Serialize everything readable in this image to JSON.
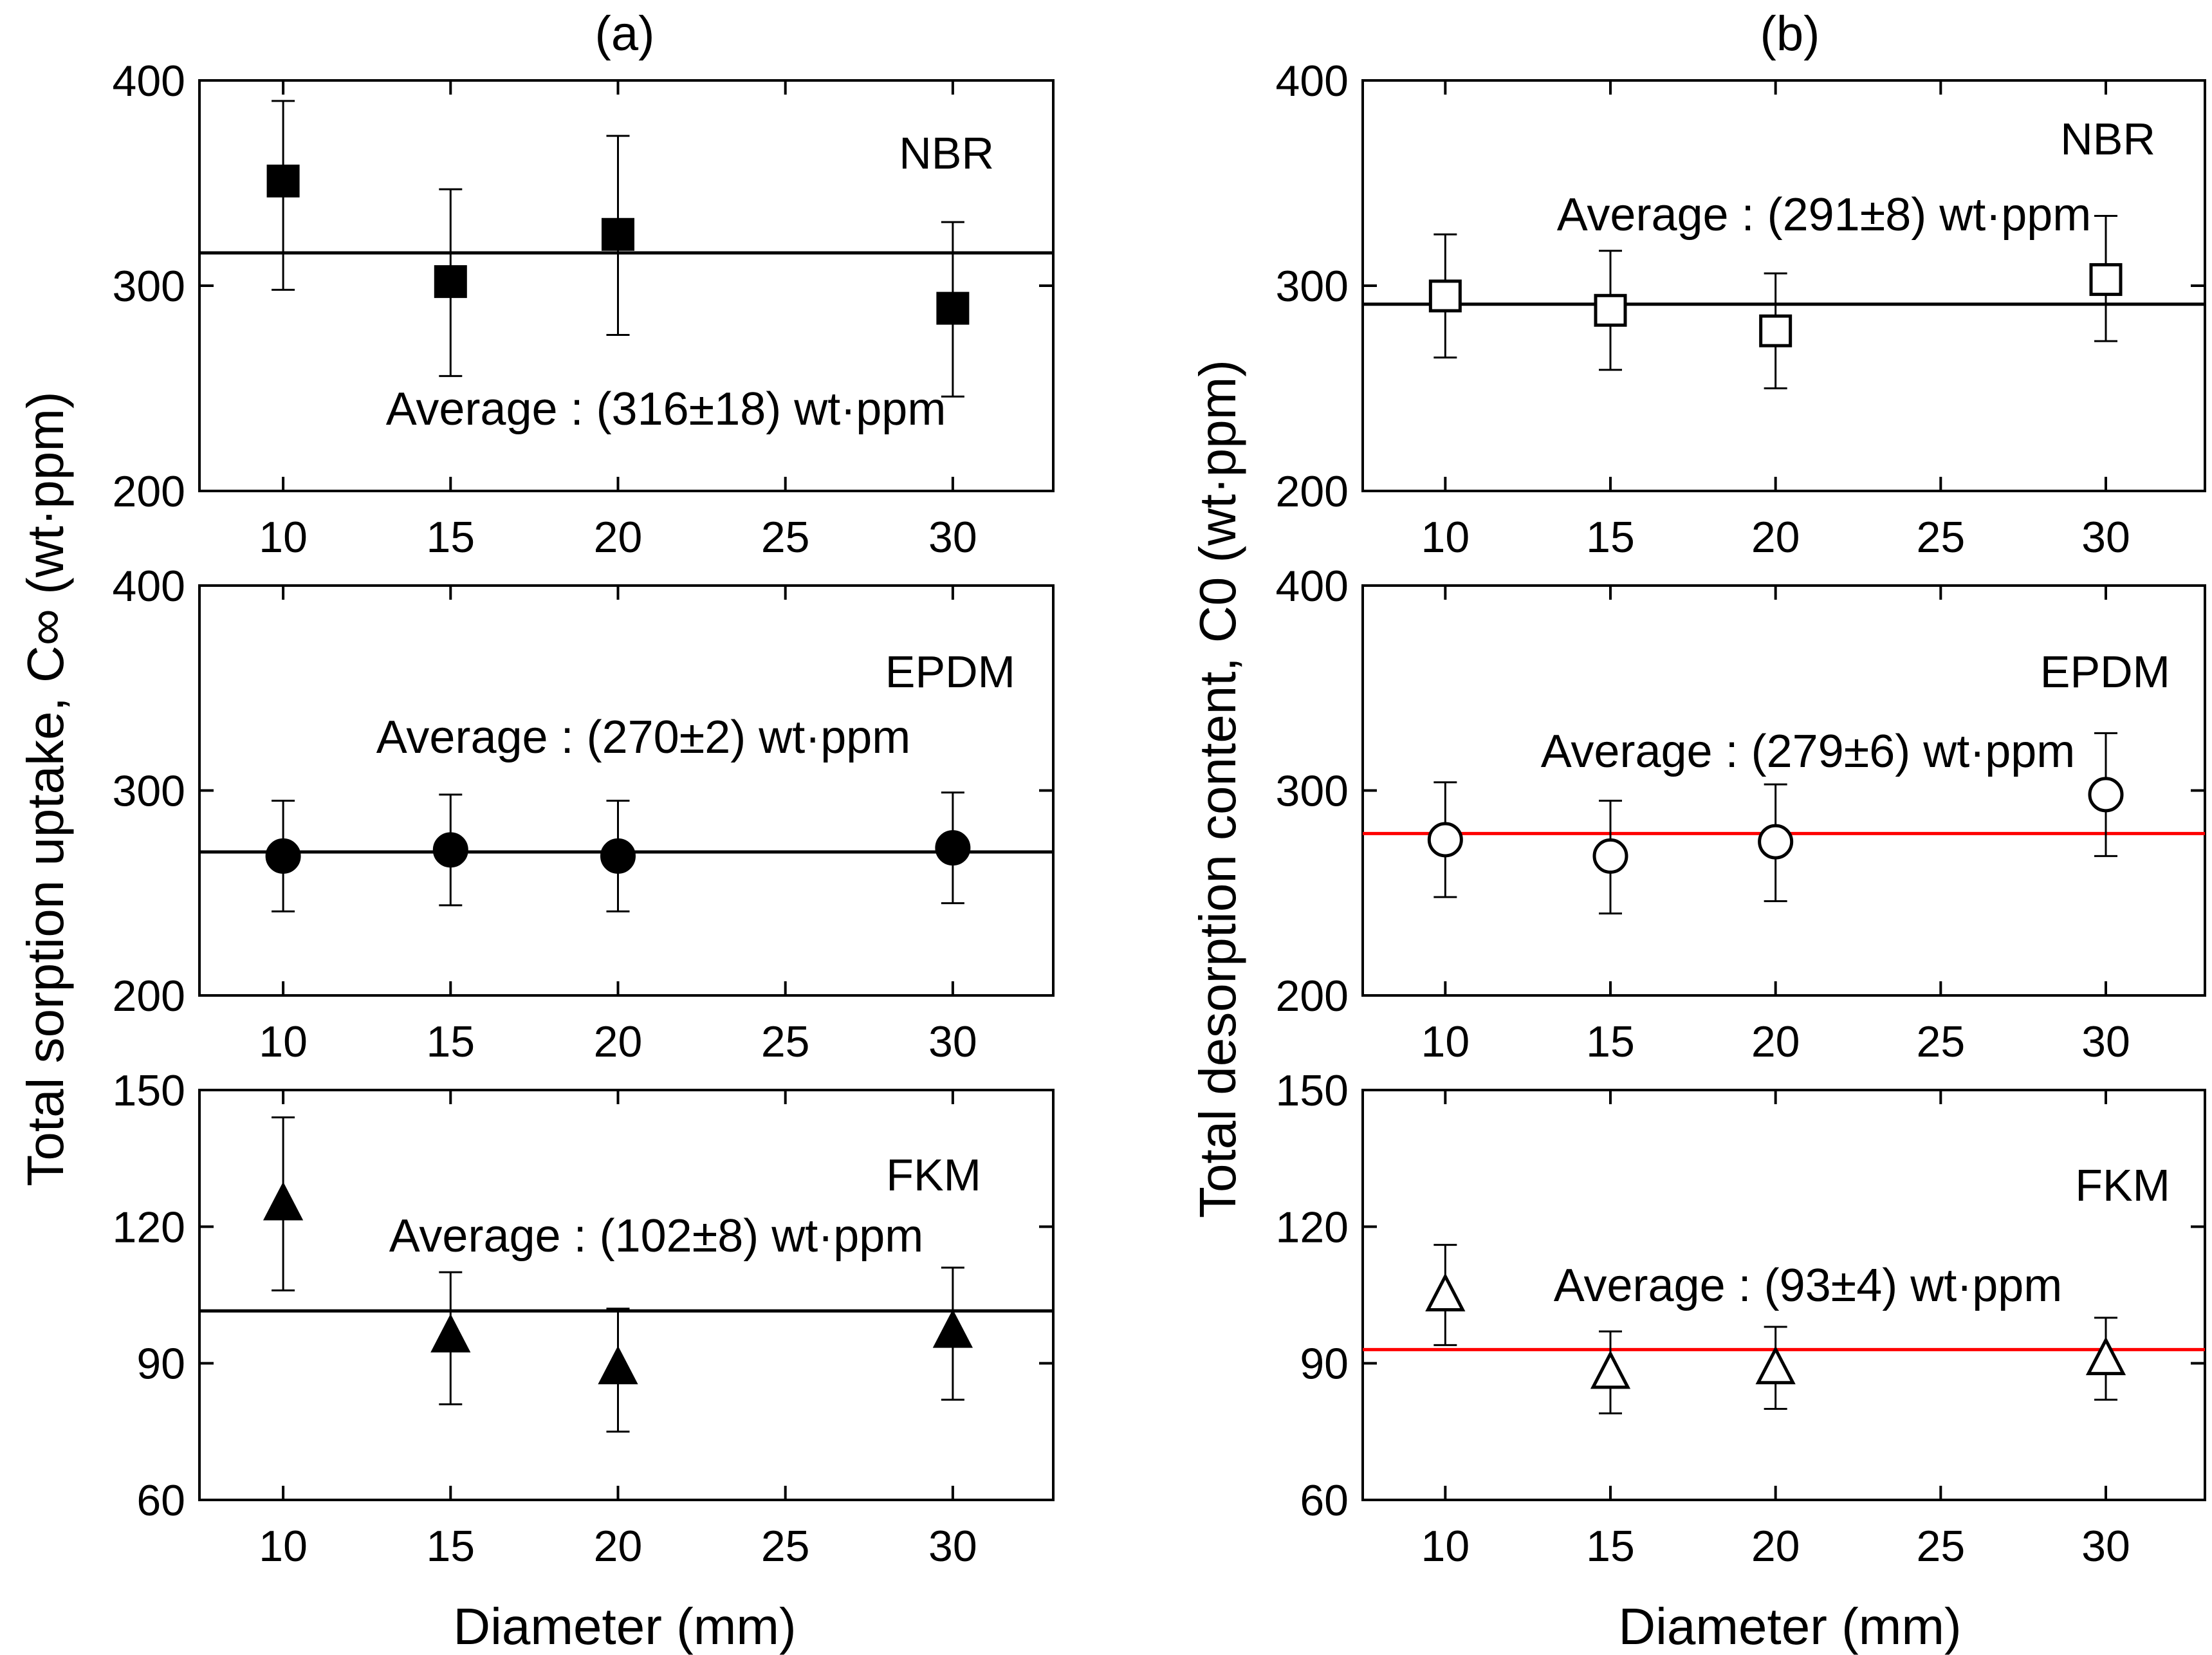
{
  "columns": [
    {
      "label": "(a)",
      "ylabel": "Total sorption uptake, C∞ (wt·ppm)",
      "xlabel": "Diameter (mm)"
    },
    {
      "label": "(b)",
      "ylabel": "Total desorption content, C0 (wt·ppm)",
      "xlabel": "Diameter (mm)"
    }
  ],
  "chart_data": [
    {
      "type": "scatter",
      "column": "(a)",
      "panel": "NBR",
      "marker": "square",
      "filled": true,
      "x": [
        10,
        15,
        20,
        30
      ],
      "y": [
        351,
        302,
        325,
        289
      ],
      "err_low": [
        298,
        256,
        276,
        246
      ],
      "err_high": [
        390,
        347,
        373,
        331
      ],
      "avg_value": 316,
      "avg_label": "Average : (316±18) wt·ppm",
      "line_color": "#000000",
      "ylim": [
        200,
        400
      ],
      "yticks": [
        "200",
        "300",
        "400"
      ],
      "xlim": [
        7.5,
        33
      ],
      "xticks": [
        "10",
        "15",
        "20",
        "25",
        "30"
      ]
    },
    {
      "type": "scatter",
      "column": "(a)",
      "panel": "EPDM",
      "marker": "circle",
      "filled": true,
      "x": [
        10,
        15,
        20,
        30
      ],
      "y": [
        268,
        271,
        268,
        272
      ],
      "err_low": [
        241,
        244,
        241,
        245
      ],
      "err_high": [
        295,
        298,
        295,
        299
      ],
      "avg_value": 270,
      "avg_label": "Average : (270±2) wt·ppm",
      "line_color": "#000000",
      "ylim": [
        200,
        400
      ],
      "yticks": [
        "200",
        "300",
        "400"
      ],
      "xlim": [
        7.5,
        33
      ],
      "xticks": [
        "10",
        "15",
        "20",
        "25",
        "30"
      ]
    },
    {
      "type": "scatter",
      "column": "(a)",
      "panel": "FKM",
      "marker": "triangle",
      "filled": true,
      "x": [
        10,
        15,
        20,
        30
      ],
      "y": [
        125,
        96,
        89,
        97
      ],
      "err_low": [
        106,
        81,
        75,
        82
      ],
      "err_high": [
        144,
        110,
        102,
        111
      ],
      "avg_value": 101.5,
      "avg_label": "Average : (102±8) wt·ppm",
      "line_color": "#000000",
      "ylim": [
        60,
        150
      ],
      "yticks": [
        "60",
        "90",
        "120",
        "150"
      ],
      "xlim": [
        7.5,
        33
      ],
      "xticks": [
        "10",
        "15",
        "20",
        "25",
        "30"
      ]
    },
    {
      "type": "scatter",
      "column": "(b)",
      "panel": "NBR",
      "marker": "square",
      "filled": false,
      "x": [
        10,
        15,
        20,
        30
      ],
      "y": [
        295,
        288,
        278,
        303
      ],
      "err_low": [
        265,
        259,
        250,
        273
      ],
      "err_high": [
        325,
        317,
        306,
        334
      ],
      "avg_value": 291,
      "avg_label": "Average : (291±8) wt·ppm",
      "line_color": "#000000",
      "ylim": [
        200,
        400
      ],
      "yticks": [
        "200",
        "300",
        "400"
      ],
      "xlim": [
        7.5,
        33
      ],
      "xticks": [
        "10",
        "15",
        "20",
        "25",
        "30"
      ]
    },
    {
      "type": "scatter",
      "column": "(b)",
      "panel": "EPDM",
      "marker": "circle",
      "filled": false,
      "x": [
        10,
        15,
        20,
        30
      ],
      "y": [
        276,
        268,
        275,
        298
      ],
      "err_low": [
        248,
        240,
        246,
        268
      ],
      "err_high": [
        304,
        295,
        303,
        328
      ],
      "avg_value": 279,
      "avg_label": "Average : (279±6) wt·ppm",
      "line_color": "#ff0000",
      "ylim": [
        200,
        400
      ],
      "yticks": [
        "200",
        "300",
        "400"
      ],
      "xlim": [
        7.5,
        33
      ],
      "xticks": [
        "10",
        "15",
        "20",
        "25",
        "30"
      ]
    },
    {
      "type": "scatter",
      "column": "(b)",
      "panel": "FKM",
      "marker": "triangle",
      "filled": false,
      "x": [
        10,
        15,
        20,
        30
      ],
      "y": [
        105,
        88,
        89,
        91
      ],
      "err_low": [
        94,
        79,
        80,
        82
      ],
      "err_high": [
        116,
        97,
        98,
        100
      ],
      "avg_value": 93,
      "avg_label": "Average : (93±4) wt·ppm",
      "line_color": "#ff0000",
      "ylim": [
        60,
        150
      ],
      "yticks": [
        "60",
        "90",
        "120",
        "150"
      ],
      "xlim": [
        7.5,
        33
      ],
      "xticks": [
        "10",
        "15",
        "20",
        "25",
        "30"
      ]
    }
  ]
}
